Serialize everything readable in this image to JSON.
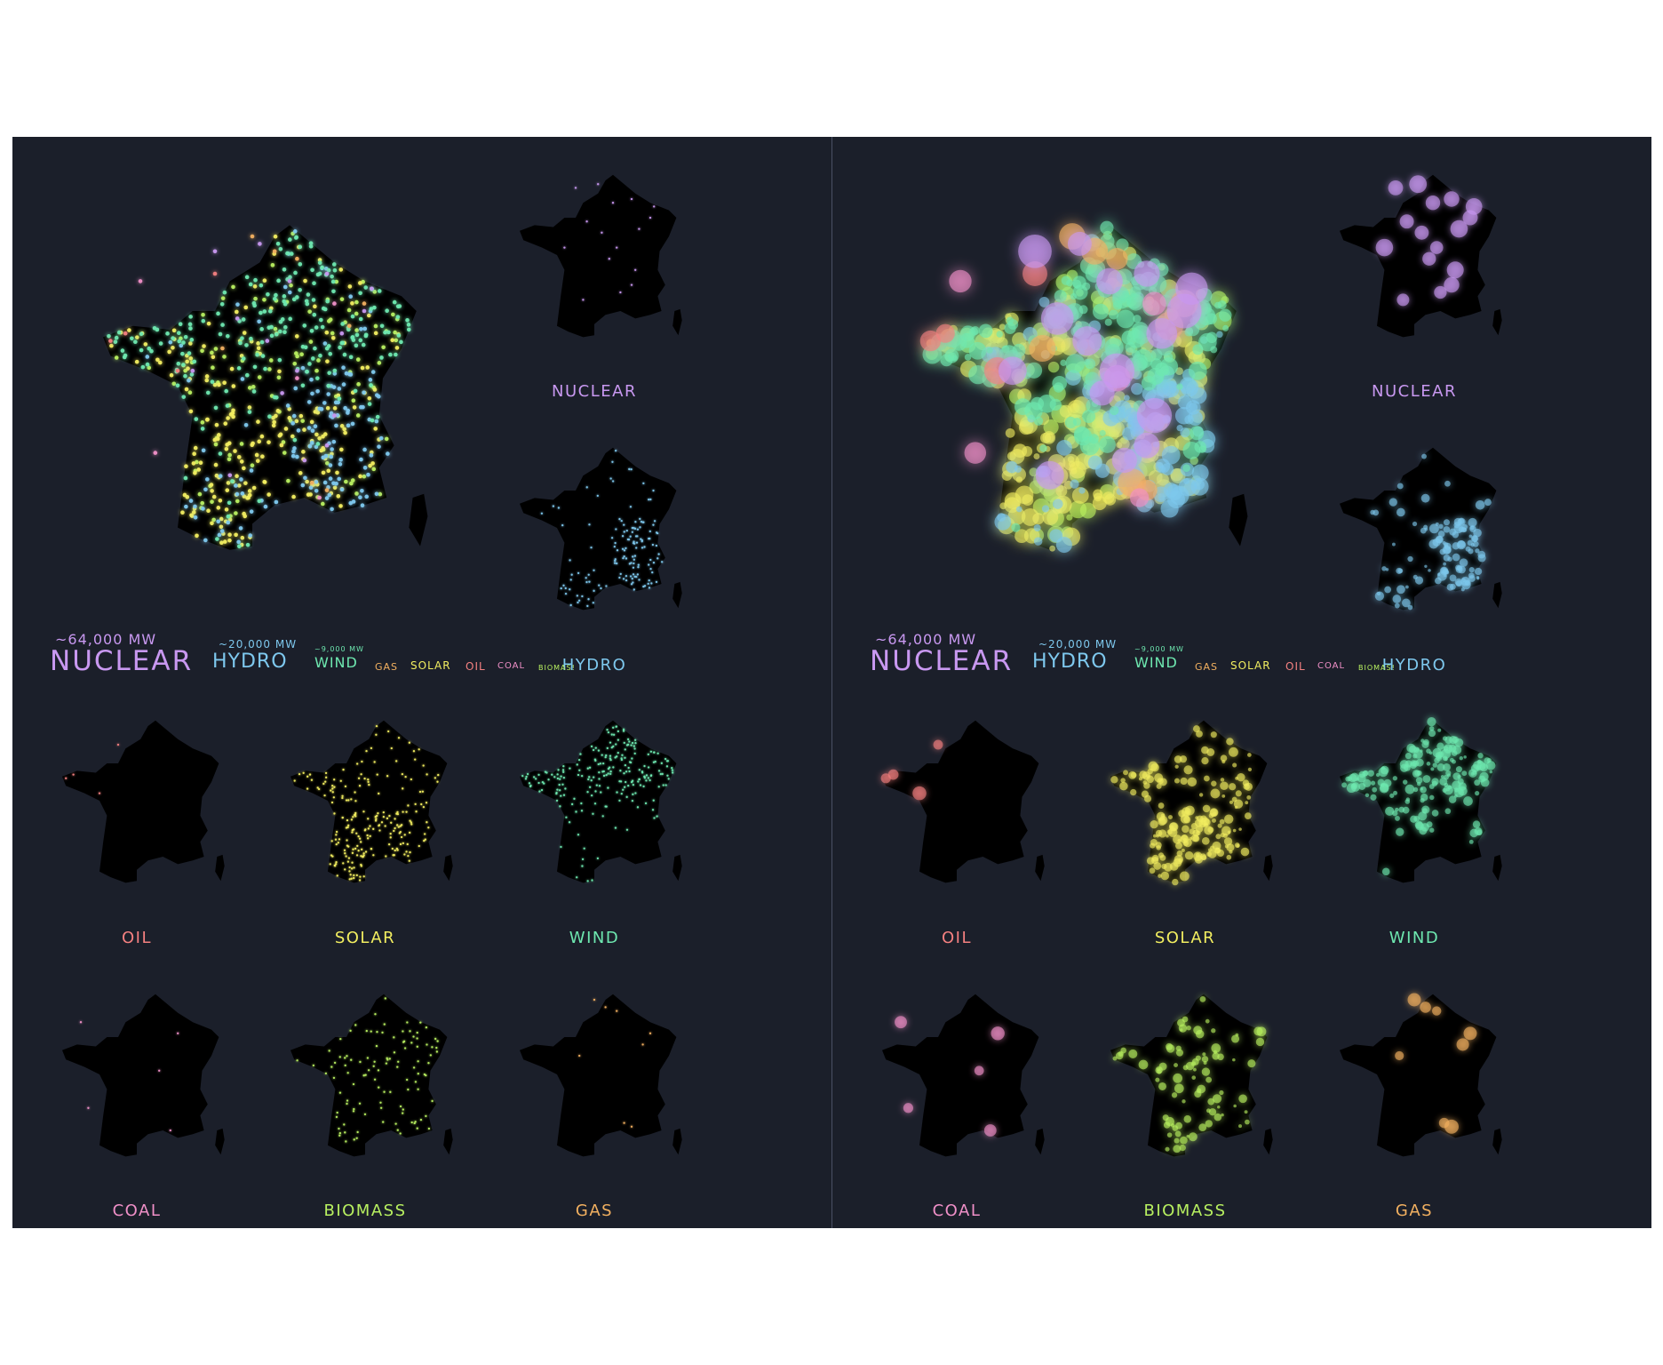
{
  "colors": {
    "background": "#1b1f2a",
    "land": "#000000",
    "nuclear": "#c898f0",
    "hydro": "#7ec8ee",
    "wind": "#6ee8b0",
    "gas": "#f2b060",
    "solar": "#f2ee60",
    "oil": "#f48080",
    "coal": "#f090c8",
    "biomass": "#b8f060"
  },
  "panels": [
    {
      "id": "left",
      "style": "small-points",
      "legend": {
        "nuclear_mw": "~64,000 MW",
        "nuclear": "NUCLEAR",
        "hydro_mw": "~20,000 MW",
        "hydro": "HYDRO",
        "wind_mw": "~9,000 MW",
        "wind": "WIND",
        "gas": "GAS",
        "solar": "SOLAR",
        "oil": "OIL",
        "coal": "COAL",
        "biomass": "BIOMAS!"
      },
      "maps": [
        {
          "key": "nuclear",
          "label": "NUCLEAR"
        },
        {
          "key": "hydro",
          "label": "HYDRO"
        },
        {
          "key": "oil",
          "label": "OIL"
        },
        {
          "key": "solar",
          "label": "SOLAR"
        },
        {
          "key": "wind",
          "label": "WIND"
        },
        {
          "key": "coal",
          "label": "COAL"
        },
        {
          "key": "biomass",
          "label": "BIOMASS"
        },
        {
          "key": "gas",
          "label": "GAS"
        }
      ]
    },
    {
      "id": "right",
      "style": "sized-bubbles",
      "legend": {
        "nuclear_mw": "~64,000 MW",
        "nuclear": "NUCLEAR",
        "hydro_mw": "~20,000 MW",
        "hydro": "HYDRO",
        "wind_mw": "~9,000 MW",
        "wind": "WIND",
        "gas": "GAS",
        "solar": "SOLAR",
        "oil": "OIL",
        "coal": "COAL",
        "biomass": "BIOMAS!"
      },
      "maps": [
        {
          "key": "nuclear",
          "label": "NUCLEAR"
        },
        {
          "key": "hydro",
          "label": "HYDRO"
        },
        {
          "key": "oil",
          "label": "OIL"
        },
        {
          "key": "solar",
          "label": "SOLAR"
        },
        {
          "key": "wind",
          "label": "WIND"
        },
        {
          "key": "coal",
          "label": "COAL"
        },
        {
          "key": "biomass",
          "label": "BIOMASS"
        },
        {
          "key": "gas",
          "label": "GAS"
        }
      ]
    }
  ]
}
